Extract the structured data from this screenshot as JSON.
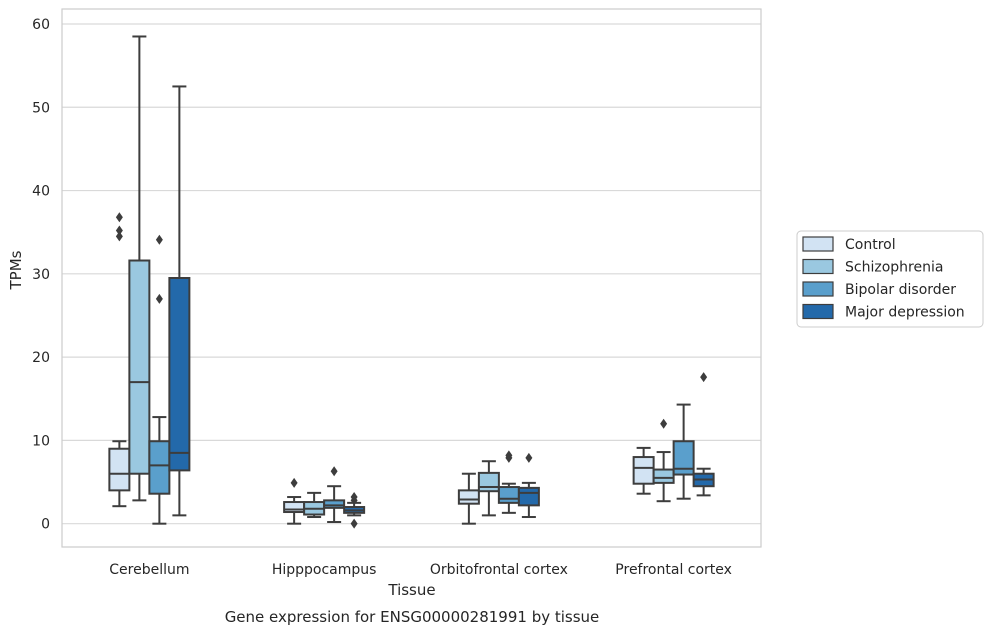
{
  "chart_data": {
    "type": "box",
    "caption": "Gene expression for ENSG00000281991 by tissue",
    "xlabel": "Tissue",
    "ylabel": "TPMs",
    "ylim": [
      -2.8,
      61.8
    ],
    "yticks": [
      0,
      10,
      20,
      30,
      40,
      50,
      60
    ],
    "grid": true,
    "legend_position": "right",
    "categories": [
      "Cerebellum",
      "Hipppocampus",
      "Orbitofrontal cortex",
      "Prefrontal cortex"
    ],
    "series": [
      {
        "name": "Control",
        "color": "#d2e3f3",
        "boxes": [
          {
            "whislo": 2.1,
            "q1": 4.0,
            "med": 6.0,
            "q3": 9.0,
            "whishi": 9.9,
            "fliers": [
              34.5,
              35.2,
              36.8
            ]
          },
          {
            "whislo": 0.0,
            "q1": 1.4,
            "med": 1.7,
            "q3": 2.6,
            "whishi": 3.2,
            "fliers": [
              4.9
            ]
          },
          {
            "whislo": 0.0,
            "q1": 2.4,
            "med": 2.9,
            "q3": 4.0,
            "whishi": 6.0,
            "fliers": []
          },
          {
            "whislo": 3.6,
            "q1": 4.8,
            "med": 6.7,
            "q3": 8.0,
            "whishi": 9.1,
            "fliers": []
          }
        ]
      },
      {
        "name": "Schizophrenia",
        "color": "#9ac8e0",
        "boxes": [
          {
            "whislo": 2.8,
            "q1": 6.0,
            "med": 17.0,
            "q3": 31.6,
            "whishi": 58.5,
            "fliers": []
          },
          {
            "whislo": 0.8,
            "q1": 1.1,
            "med": 1.8,
            "q3": 2.6,
            "whishi": 3.7,
            "fliers": []
          },
          {
            "whislo": 1.0,
            "q1": 3.9,
            "med": 4.4,
            "q3": 6.1,
            "whishi": 7.5,
            "fliers": []
          },
          {
            "whislo": 2.7,
            "q1": 4.9,
            "med": 5.5,
            "q3": 6.5,
            "whishi": 8.6,
            "fliers": [
              12.0
            ]
          }
        ]
      },
      {
        "name": "Bipolar disorder",
        "color": "#5a9fcc",
        "boxes": [
          {
            "whislo": 0.0,
            "q1": 3.6,
            "med": 7.0,
            "q3": 9.9,
            "whishi": 12.8,
            "fliers": [
              27.0,
              34.1
            ]
          },
          {
            "whislo": 0.2,
            "q1": 1.9,
            "med": 2.2,
            "q3": 2.8,
            "whishi": 4.5,
            "fliers": [
              6.3
            ]
          },
          {
            "whislo": 1.3,
            "q1": 2.5,
            "med": 3.0,
            "q3": 4.4,
            "whishi": 4.8,
            "fliers": [
              7.9,
              8.2
            ]
          },
          {
            "whislo": 3.0,
            "q1": 5.9,
            "med": 6.6,
            "q3": 9.9,
            "whishi": 14.3,
            "fliers": []
          }
        ]
      },
      {
        "name": "Major depression",
        "color": "#2369aa",
        "boxes": [
          {
            "whislo": 1.0,
            "q1": 6.4,
            "med": 8.5,
            "q3": 29.5,
            "whishi": 52.5,
            "fliers": []
          },
          {
            "whislo": 1.0,
            "q1": 1.3,
            "med": 1.6,
            "q3": 2.0,
            "whishi": 2.5,
            "fliers": [
              0.0,
              2.8,
              3.2
            ]
          },
          {
            "whislo": 0.8,
            "q1": 2.2,
            "med": 3.7,
            "q3": 4.3,
            "whishi": 4.9,
            "fliers": [
              7.9
            ]
          },
          {
            "whislo": 3.4,
            "q1": 4.5,
            "med": 5.3,
            "q3": 6.0,
            "whishi": 6.6,
            "fliers": [
              17.6
            ]
          }
        ]
      }
    ]
  }
}
